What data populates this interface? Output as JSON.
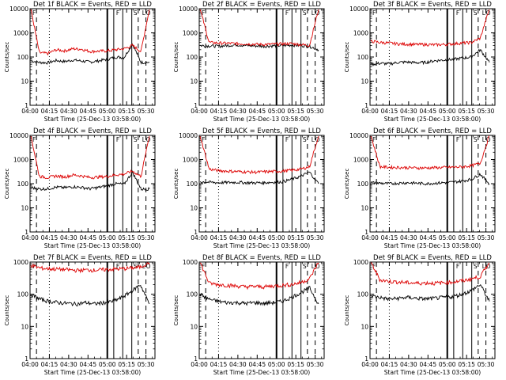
{
  "colors": {
    "events": "#000000",
    "lld": "#dd0000",
    "background": "#ffffff"
  },
  "chart_data": [
    {
      "type": "line",
      "title": "Det 1f BLACK = Events, RED = LLD",
      "xlabel": "Start Time (25-Dec-13 03:58:00)",
      "ylabel": "Counts/sec",
      "x_ticks": [
        "04:00",
        "04:15",
        "04:30",
        "04:45",
        "05:00",
        "05:15",
        "05:30"
      ],
      "y_ticks": [
        "1",
        "10",
        "100",
        "1000",
        "10000"
      ],
      "ylim": [
        1,
        10000
      ],
      "yscale": "log",
      "series": [
        {
          "name": "Events",
          "color": "#000000",
          "values": [
            70,
            60,
            58,
            72,
            65,
            75,
            68,
            62,
            70,
            80,
            100,
            95,
            350,
            60,
            60
          ]
        },
        {
          "name": "LLD",
          "color": "#dd0000",
          "values": [
            10000,
            150,
            140,
            200,
            180,
            220,
            210,
            170,
            175,
            180,
            200,
            220,
            300,
            170,
            10000
          ]
        }
      ],
      "markers": {
        "solid": [
          "05:00",
          "05:05"
        ],
        "dashed": [
          "04:05",
          "05:24",
          "05:30"
        ],
        "dotted": [
          "04:15"
        ],
        "flags": [
          "F",
          "F",
          "S",
          "L",
          "O"
        ]
      }
    },
    {
      "type": "line",
      "title": "Det 2f BLACK = Events, RED = LLD",
      "xlabel": "Start Time (25-Dec-13 03:58:00)",
      "ylabel": "Counts/sec",
      "x_ticks": [
        "04:00",
        "04:15",
        "04:30",
        "04:45",
        "05:00",
        "05:15",
        "05:30"
      ],
      "y_ticks": [
        "1",
        "10",
        "100",
        "1000",
        "10000"
      ],
      "ylim": [
        1,
        10000
      ],
      "yscale": "log",
      "series": [
        {
          "name": "Events",
          "color": "#000000",
          "values": [
            300,
            290,
            280,
            300,
            320,
            300,
            290,
            280,
            290,
            300,
            310,
            300,
            280,
            200
          ]
        },
        {
          "name": "LLD",
          "color": "#dd0000",
          "values": [
            10000,
            400,
            380,
            370,
            360,
            350,
            340,
            330,
            340,
            350,
            360,
            330,
            300,
            10000
          ]
        }
      ],
      "markers": {
        "solid": [
          "05:00",
          "05:05"
        ],
        "dashed": [
          "04:05",
          "05:24",
          "05:30"
        ],
        "dotted": [
          "04:15"
        ],
        "flags": [
          "F",
          "F",
          "S",
          "L",
          "O"
        ]
      }
    },
    {
      "type": "line",
      "title": "Det 3f BLACK = Events, RED = LLD",
      "xlabel": "Start Time (25-Dec-13 03:58:00)",
      "ylabel": "Counts/sec",
      "x_ticks": [
        "04:00",
        "04:15",
        "04:30",
        "04:45",
        "05:00",
        "05:15",
        "05:30"
      ],
      "y_ticks": [
        "1",
        "10",
        "100",
        "1000",
        "10000"
      ],
      "ylim": [
        1,
        10000
      ],
      "yscale": "log",
      "series": [
        {
          "name": "Events",
          "color": "#000000",
          "values": [
            50,
            55,
            52,
            60,
            62,
            58,
            60,
            70,
            75,
            80,
            90,
            100,
            200,
            60
          ]
        },
        {
          "name": "LLD",
          "color": "#dd0000",
          "values": [
            450,
            400,
            380,
            350,
            340,
            330,
            330,
            320,
            330,
            350,
            380,
            400,
            600,
            10000
          ]
        }
      ],
      "markers": {
        "solid": [
          "05:00",
          "05:05"
        ],
        "dashed": [
          "04:05",
          "05:24",
          "05:30"
        ],
        "dotted": [
          "04:15"
        ],
        "flags": [
          "F",
          "F",
          "S",
          "L",
          "O"
        ]
      }
    },
    {
      "type": "line",
      "title": "Det 4f BLACK = Events, RED = LLD",
      "xlabel": "Start Time (25-Dec-13 03:58:00)",
      "ylabel": "Counts/sec",
      "x_ticks": [
        "04:00",
        "04:15",
        "04:30",
        "04:45",
        "05:00",
        "05:15",
        "05:30"
      ],
      "y_ticks": [
        "1",
        "10",
        "100",
        "1000",
        "10000"
      ],
      "ylim": [
        1,
        10000
      ],
      "yscale": "log",
      "series": [
        {
          "name": "Events",
          "color": "#000000",
          "values": [
            70,
            60,
            62,
            72,
            68,
            75,
            70,
            62,
            70,
            82,
            100,
            95,
            300,
            60,
            60
          ]
        },
        {
          "name": "LLD",
          "color": "#dd0000",
          "values": [
            10000,
            200,
            180,
            210,
            190,
            230,
            210,
            180,
            190,
            200,
            230,
            250,
            330,
            200,
            10000
          ]
        }
      ],
      "markers": {
        "solid": [
          "05:00",
          "05:05"
        ],
        "dashed": [
          "04:05",
          "05:24",
          "05:30"
        ],
        "dotted": [
          "04:15"
        ],
        "flags": [
          "F",
          "F",
          "S",
          "L",
          "O"
        ]
      }
    },
    {
      "type": "line",
      "title": "Det 5f BLACK = Events, RED = LLD",
      "xlabel": "Start Time (25-Dec-13 03:58:00)",
      "ylabel": "Counts/sec",
      "x_ticks": [
        "04:00",
        "04:15",
        "04:30",
        "04:45",
        "05:00",
        "05:15",
        "05:30"
      ],
      "y_ticks": [
        "1",
        "10",
        "100",
        "1000",
        "10000"
      ],
      "ylim": [
        1,
        10000
      ],
      "yscale": "log",
      "series": [
        {
          "name": "Events",
          "color": "#000000",
          "values": [
            120,
            115,
            110,
            112,
            115,
            110,
            108,
            110,
            115,
            120,
            150,
            200,
            300,
            100
          ]
        },
        {
          "name": "LLD",
          "color": "#dd0000",
          "values": [
            10000,
            400,
            350,
            330,
            320,
            310,
            300,
            310,
            320,
            330,
            360,
            400,
            500,
            10000
          ]
        }
      ],
      "markers": {
        "solid": [
          "05:00",
          "05:05"
        ],
        "dashed": [
          "04:05",
          "05:24",
          "05:30"
        ],
        "dotted": [
          "04:15"
        ],
        "flags": [
          "F",
          "F",
          "S",
          "L",
          "O"
        ]
      }
    },
    {
      "type": "line",
      "title": "Det 6f BLACK = Events, RED = LLD",
      "xlabel": "Start Time (25-Dec-13 03:58:00)",
      "ylabel": "Counts/sec",
      "x_ticks": [
        "04:00",
        "04:15",
        "04:30",
        "04:45",
        "05:00",
        "05:15",
        "05:30"
      ],
      "y_ticks": [
        "1",
        "10",
        "100",
        "1000",
        "10000"
      ],
      "ylim": [
        1,
        10000
      ],
      "yscale": "log",
      "series": [
        {
          "name": "Events",
          "color": "#000000",
          "values": [
            110,
            105,
            100,
            105,
            110,
            105,
            100,
            105,
            110,
            115,
            130,
            150,
            250,
            100
          ]
        },
        {
          "name": "LLD",
          "color": "#dd0000",
          "values": [
            10000,
            500,
            480,
            470,
            460,
            450,
            450,
            460,
            470,
            480,
            500,
            550,
            700,
            10000
          ]
        }
      ],
      "markers": {
        "solid": [
          "05:00",
          "05:05"
        ],
        "dashed": [
          "04:05",
          "05:24",
          "05:30"
        ],
        "dotted": [
          "04:15"
        ],
        "flags": [
          "F",
          "F",
          "S",
          "L",
          "O"
        ]
      }
    },
    {
      "type": "line",
      "title": "Det 7f BLACK = Events, RED = LLD",
      "xlabel": "Start Time (25-Dec-13 03:58:00)",
      "ylabel": "Counts/sec",
      "x_ticks": [
        "04:00",
        "04:15",
        "04:30",
        "04:45",
        "05:00",
        "05:15",
        "05:30"
      ],
      "y_ticks": [
        "1",
        "10",
        "100",
        "1000"
      ],
      "ylim": [
        1,
        1000
      ],
      "yscale": "log",
      "series": [
        {
          "name": "Events",
          "color": "#000000",
          "values": [
            100,
            70,
            60,
            55,
            52,
            50,
            55,
            50,
            55,
            60,
            80,
            120,
            200,
            50
          ]
        },
        {
          "name": "LLD",
          "color": "#dd0000",
          "values": [
            800,
            650,
            620,
            600,
            580,
            550,
            570,
            560,
            580,
            600,
            620,
            650,
            700,
            1000
          ]
        }
      ],
      "markers": {
        "solid": [
          "05:00",
          "05:05"
        ],
        "dashed": [
          "04:05",
          "05:24",
          "05:30"
        ],
        "dotted": [
          "04:15"
        ],
        "flags": [
          "F",
          "F",
          "S",
          "L",
          "O"
        ]
      }
    },
    {
      "type": "line",
      "title": "Det 8f BLACK = Events, RED = LLD",
      "xlabel": "Start Time (25-Dec-13 03:58:00)",
      "ylabel": "Counts/sec",
      "x_ticks": [
        "04:00",
        "04:15",
        "04:30",
        "04:45",
        "05:00",
        "05:15",
        "05:30"
      ],
      "y_ticks": [
        "1",
        "10",
        "100",
        "1000"
      ],
      "ylim": [
        1,
        1000
      ],
      "yscale": "log",
      "series": [
        {
          "name": "Events",
          "color": "#000000",
          "values": [
            100,
            70,
            60,
            55,
            55,
            52,
            55,
            52,
            55,
            60,
            80,
            110,
            160,
            50
          ]
        },
        {
          "name": "LLD",
          "color": "#dd0000",
          "values": [
            1000,
            220,
            200,
            190,
            180,
            170,
            175,
            170,
            180,
            190,
            200,
            230,
            300,
            1000
          ]
        }
      ],
      "markers": {
        "solid": [
          "05:00",
          "05:05"
        ],
        "dashed": [
          "04:05",
          "05:24",
          "05:30"
        ],
        "dotted": [
          "04:15"
        ],
        "flags": [
          "F",
          "F",
          "S",
          "L",
          "O"
        ]
      }
    },
    {
      "type": "line",
      "title": "Det 9f BLACK = Events, RED = LLD",
      "xlabel": "Start Time (25-Dec-13 03:58:00)",
      "ylabel": "Counts/sec",
      "x_ticks": [
        "04:00",
        "04:15",
        "04:30",
        "04:45",
        "05:00",
        "05:15",
        "05:30"
      ],
      "y_ticks": [
        "1",
        "10",
        "100",
        "1000"
      ],
      "ylim": [
        1,
        1000
      ],
      "yscale": "log",
      "series": [
        {
          "name": "Events",
          "color": "#000000",
          "values": [
            90,
            80,
            70,
            75,
            80,
            75,
            72,
            75,
            80,
            85,
            100,
            130,
            200,
            60
          ]
        },
        {
          "name": "LLD",
          "color": "#dd0000",
          "values": [
            1000,
            280,
            250,
            240,
            230,
            220,
            225,
            220,
            230,
            240,
            260,
            300,
            350,
            1000
          ]
        }
      ],
      "markers": {
        "solid": [
          "05:00",
          "05:05"
        ],
        "dashed": [
          "04:05",
          "05:24",
          "05:30"
        ],
        "dotted": [
          "04:15"
        ],
        "flags": [
          "F",
          "F",
          "S",
          "L",
          "O"
        ]
      }
    }
  ]
}
